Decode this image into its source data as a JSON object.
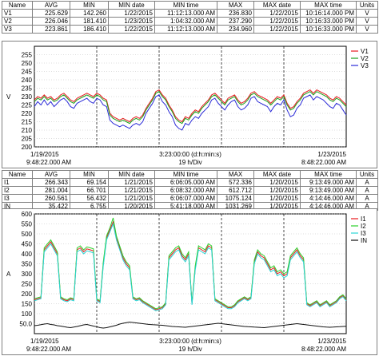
{
  "top_table": {
    "headers": [
      "Name",
      "AVG",
      "MIN",
      "MIN date",
      "MIN time",
      "MAX",
      "MAX date",
      "MAX time",
      "Units"
    ],
    "rows": [
      [
        "V1",
        "225.629",
        "142.260",
        "1/22/2015",
        "11:12:13.000 AM",
        "236.830",
        "1/22/2015",
        "10:16:14.000 PM",
        "V"
      ],
      [
        "V2",
        "226.046",
        "181.410",
        "1/23/2015",
        "1:04:32.000 AM",
        "237.290",
        "1/22/2015",
        "10:16:33.000 PM",
        "V"
      ],
      [
        "V3",
        "223.861",
        "186.410",
        "1/22/2015",
        "11:12:13.000 AM",
        "234.960",
        "1/22/2015",
        "10:16:33.000 PM",
        "V"
      ]
    ]
  },
  "bottom_table": {
    "headers": [
      "Name",
      "AVG",
      "MIN",
      "MIN date",
      "MIN time",
      "MAX",
      "MAX date",
      "MAX time",
      "Units"
    ],
    "rows": [
      [
        "I1",
        "266.343",
        "69.154",
        "1/21/2015",
        "6:06:05.000 AM",
        "572.336",
        "1/20/2015",
        "9:13:49.000 AM",
        "A"
      ],
      [
        "I2",
        "281.004",
        "66.701",
        "1/21/2015",
        "6:08:32.000 AM",
        "612.712",
        "1/20/2015",
        "9:13:49.000 AM",
        "A"
      ],
      [
        "I3",
        "260.561",
        "56.432",
        "1/21/2015",
        "6:06:07.000 AM",
        "1075.124",
        "1/20/2015",
        "4:14:46.000 AM",
        "A"
      ],
      [
        "IN",
        "35.422",
        "6.755",
        "1/20/2015",
        "5:41:18.000 AM",
        "1031.269",
        "1/20/2015",
        "4:14:46.000 AM",
        "A"
      ]
    ]
  },
  "chart_data": [
    {
      "type": "line",
      "ylabel": "V",
      "ylim": [
        200,
        260
      ],
      "yticks": [
        200,
        205,
        210,
        215,
        220,
        225,
        230,
        235,
        240,
        245,
        250,
        255
      ],
      "grid": true,
      "legend_position": "top-right",
      "x_start_label": [
        "1/19/2015",
        "9:48:22.000 AM"
      ],
      "x_mid_label": [
        "3:23:00:00 (d:h:min:s)",
        "19 h/Div"
      ],
      "x_end_label": [
        "1/23/2015",
        "8:48:22.000 AM"
      ],
      "x_divisions": 5,
      "series": [
        {
          "name": "V1",
          "color": "#e8191e",
          "values": [
            228,
            230,
            229,
            231,
            229,
            230,
            228,
            229,
            231,
            232,
            230,
            228,
            227,
            229,
            230,
            231,
            232,
            231,
            230,
            232,
            231,
            229,
            228,
            220,
            218,
            217,
            216,
            217,
            216,
            215,
            217,
            218,
            217,
            219,
            223,
            226,
            229,
            233,
            234,
            231,
            229,
            225,
            222,
            218,
            216,
            215,
            218,
            217,
            220,
            222,
            221,
            224,
            226,
            228,
            231,
            232,
            230,
            228,
            226,
            229,
            230,
            231,
            228,
            226,
            227,
            229,
            232,
            233,
            231,
            230,
            229,
            228,
            226,
            228,
            230,
            229,
            231,
            226,
            223,
            224,
            227,
            229,
            232,
            233,
            234,
            232,
            234,
            233,
            232,
            231,
            229,
            228,
            230,
            229,
            227,
            225
          ]
        },
        {
          "name": "V2",
          "color": "#1aa01a",
          "values": [
            227,
            229,
            228,
            230,
            228,
            229,
            227,
            228,
            230,
            231,
            229,
            227,
            226,
            228,
            229,
            230,
            231,
            230,
            229,
            231,
            230,
            228,
            227,
            219,
            217,
            216,
            215,
            216,
            215,
            214,
            216,
            217,
            216,
            218,
            222,
            225,
            228,
            232,
            233,
            230,
            228,
            224,
            221,
            217,
            215,
            214,
            217,
            216,
            219,
            221,
            220,
            223,
            225,
            227,
            230,
            231,
            229,
            227,
            225,
            228,
            229,
            230,
            227,
            225,
            226,
            228,
            231,
            232,
            230,
            229,
            228,
            227,
            225,
            227,
            229,
            228,
            230,
            225,
            222,
            223,
            226,
            228,
            231,
            232,
            233,
            231,
            233,
            232,
            231,
            230,
            228,
            227,
            229,
            228,
            226,
            224
          ]
        },
        {
          "name": "V3",
          "color": "#2c2cd8",
          "values": [
            224,
            227,
            225,
            228,
            225,
            227,
            224,
            226,
            228,
            229,
            227,
            224,
            223,
            226,
            227,
            228,
            229,
            227,
            226,
            229,
            228,
            225,
            224,
            216,
            214,
            213,
            212,
            213,
            212,
            211,
            213,
            214,
            213,
            215,
            220,
            223,
            226,
            230,
            231,
            227,
            225,
            221,
            218,
            213,
            211,
            210,
            214,
            213,
            216,
            218,
            217,
            220,
            222,
            224,
            228,
            229,
            226,
            224,
            222,
            225,
            227,
            228,
            224,
            222,
            223,
            225,
            229,
            230,
            227,
            226,
            225,
            224,
            221,
            224,
            226,
            225,
            228,
            222,
            218,
            219,
            223,
            225,
            229,
            230,
            231,
            228,
            230,
            229,
            228,
            226,
            224,
            223,
            226,
            225,
            222,
            219
          ]
        }
      ]
    },
    {
      "type": "line",
      "ylabel": "A",
      "ylim": [
        0,
        600
      ],
      "yticks": [
        50,
        100,
        150,
        200,
        250,
        300,
        350,
        400,
        450,
        500,
        550,
        600
      ],
      "ytick_labels": [
        "50.0",
        "100",
        "150",
        "200",
        "250",
        "300",
        "350",
        "400",
        "450",
        "500",
        "550",
        "600"
      ],
      "grid": true,
      "legend_position": "top-right",
      "x_start_label": [
        "1/19/2015",
        "9:48:22.000 AM"
      ],
      "x_mid_label": [
        "3:23:00:00 (d:h:min:s)",
        "19 h/Div"
      ],
      "x_end_label": [
        "1/23/2015",
        "8:48:22.000 AM"
      ],
      "x_divisions": 5,
      "series": [
        {
          "name": "I1",
          "color": "#e8191e",
          "values": [
            170,
            175,
            180,
            420,
            440,
            460,
            430,
            400,
            180,
            170,
            165,
            175,
            170,
            420,
            430,
            410,
            425,
            420,
            415,
            170,
            160,
            350,
            480,
            520,
            560,
            480,
            430,
            380,
            350,
            330,
            180,
            170,
            175,
            160,
            150,
            140,
            130,
            120,
            125,
            130,
            150,
            380,
            400,
            420,
            430,
            390,
            370,
            400,
            150,
            330,
            430,
            420,
            410,
            440,
            430,
            170,
            160,
            150,
            140,
            130,
            130,
            140,
            160,
            170,
            180,
            170,
            180,
            360,
            410,
            390,
            380,
            350,
            320,
            330,
            300,
            310,
            290,
            300,
            380,
            400,
            420,
            390,
            370,
            150,
            140,
            150,
            160,
            140,
            150,
            160,
            140,
            150,
            160,
            180,
            190,
            170
          ]
        },
        {
          "name": "I2",
          "color": "#2bd02b",
          "values": [
            175,
            180,
            185,
            430,
            450,
            470,
            440,
            410,
            185,
            175,
            170,
            180,
            175,
            430,
            440,
            420,
            435,
            430,
            425,
            175,
            165,
            360,
            490,
            530,
            580,
            490,
            440,
            390,
            360,
            340,
            185,
            175,
            180,
            165,
            155,
            145,
            135,
            125,
            130,
            135,
            155,
            390,
            410,
            430,
            440,
            400,
            380,
            410,
            155,
            340,
            440,
            430,
            420,
            450,
            440,
            175,
            165,
            155,
            145,
            135,
            135,
            145,
            165,
            175,
            185,
            175,
            185,
            370,
            420,
            400,
            390,
            360,
            330,
            340,
            310,
            320,
            300,
            310,
            390,
            410,
            430,
            400,
            380,
            155,
            145,
            155,
            165,
            145,
            155,
            165,
            145,
            155,
            165,
            185,
            195,
            175
          ]
        },
        {
          "name": "I3",
          "color": "#2ad4d4",
          "values": [
            165,
            170,
            175,
            410,
            430,
            450,
            420,
            390,
            175,
            165,
            160,
            170,
            165,
            410,
            420,
            400,
            415,
            410,
            405,
            165,
            155,
            340,
            470,
            510,
            550,
            470,
            420,
            370,
            340,
            320,
            175,
            165,
            170,
            155,
            145,
            135,
            125,
            115,
            120,
            125,
            145,
            370,
            390,
            410,
            420,
            380,
            360,
            390,
            145,
            320,
            420,
            410,
            400,
            430,
            420,
            165,
            155,
            145,
            135,
            125,
            125,
            135,
            155,
            165,
            175,
            165,
            175,
            350,
            400,
            380,
            370,
            340,
            310,
            320,
            290,
            300,
            280,
            290,
            370,
            390,
            410,
            380,
            360,
            145,
            135,
            145,
            155,
            135,
            145,
            155,
            135,
            145,
            155,
            175,
            185,
            165
          ]
        },
        {
          "name": "IN",
          "color": "#111111",
          "values": [
            40,
            42,
            45,
            48,
            50,
            46,
            44,
            40,
            38,
            35,
            32,
            30,
            33,
            36,
            40,
            44,
            46,
            42,
            38,
            35,
            30,
            28,
            30,
            34,
            38,
            42,
            48,
            52,
            55,
            58,
            56,
            54,
            52,
            50,
            48,
            46,
            45,
            44,
            43,
            42,
            40,
            38,
            36,
            35,
            34,
            33,
            32,
            34,
            36,
            38,
            40,
            42,
            44,
            46,
            48,
            50,
            52,
            50,
            48,
            46,
            44,
            42,
            40,
            38,
            36,
            35,
            34,
            33,
            32,
            31,
            30,
            32,
            34,
            36,
            38,
            40,
            42,
            44,
            46,
            48,
            50,
            48,
            46,
            44,
            42,
            40,
            38,
            36,
            34,
            33,
            32,
            33,
            34,
            35,
            36,
            37
          ]
        }
      ]
    }
  ]
}
